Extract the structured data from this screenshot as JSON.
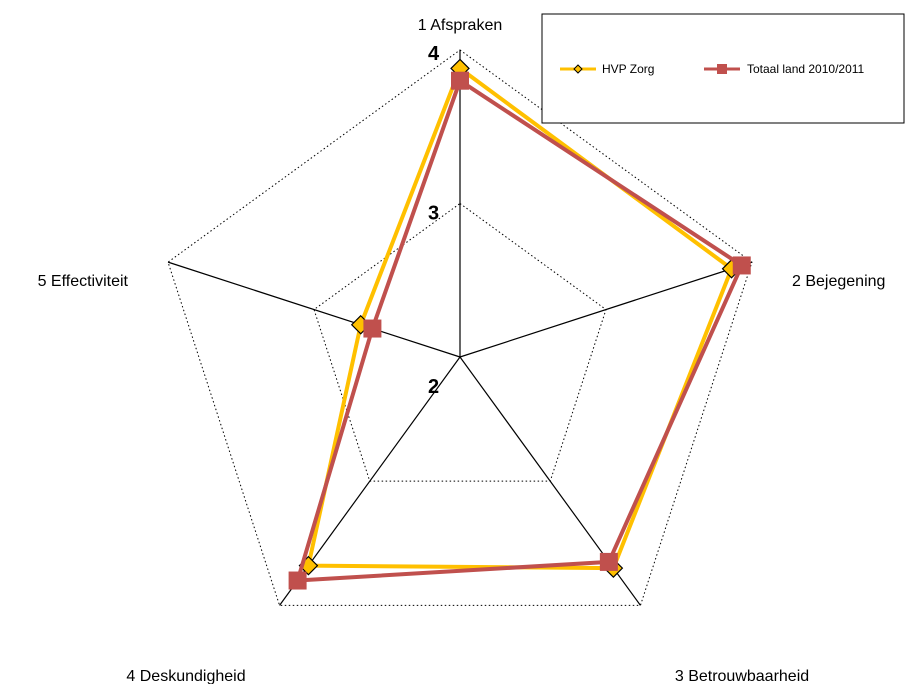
{
  "chart_data": {
    "type": "radar",
    "axes": [
      "1 Afspraken",
      "2 Bejegening",
      "3 Betrouwbaarheid",
      "4 Deskundigheid",
      "5 Effectiviteit"
    ],
    "rlim": [
      2,
      4
    ],
    "ticks": [
      "2",
      "3",
      "4"
    ],
    "series": [
      {
        "name": "HVP Zorg",
        "color": "#FFC000",
        "marker": "diamond",
        "values": [
          3.88,
          3.86,
          3.7,
          3.68,
          2.68
        ]
      },
      {
        "name": "Totaal land 2010/2011",
        "color": "#C0504D",
        "marker": "square",
        "values": [
          3.8,
          3.93,
          3.65,
          3.8,
          2.6
        ]
      }
    ],
    "gridlines": "dotted",
    "legend_position": "top-right"
  }
}
